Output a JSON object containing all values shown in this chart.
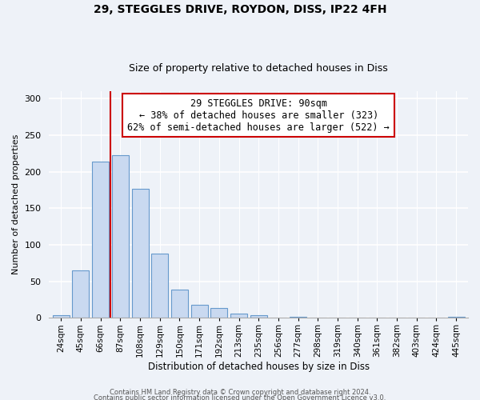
{
  "title1": "29, STEGGLES DRIVE, ROYDON, DISS, IP22 4FH",
  "title2": "Size of property relative to detached houses in Diss",
  "xlabel": "Distribution of detached houses by size in Diss",
  "ylabel": "Number of detached properties",
  "bar_labels": [
    "24sqm",
    "45sqm",
    "66sqm",
    "87sqm",
    "108sqm",
    "129sqm",
    "150sqm",
    "171sqm",
    "192sqm",
    "213sqm",
    "235sqm",
    "256sqm",
    "277sqm",
    "298sqm",
    "319sqm",
    "340sqm",
    "361sqm",
    "382sqm",
    "403sqm",
    "424sqm",
    "445sqm"
  ],
  "bar_heights": [
    4,
    65,
    214,
    222,
    177,
    88,
    39,
    18,
    14,
    6,
    4,
    0,
    1,
    0,
    0,
    0,
    0,
    0,
    0,
    0,
    1
  ],
  "bar_color": "#c9d9f0",
  "bar_edge_color": "#6699cc",
  "vline_color": "#cc0000",
  "annotation_title": "29 STEGGLES DRIVE: 90sqm",
  "annotation_line1": "← 38% of detached houses are smaller (323)",
  "annotation_line2": "62% of semi-detached houses are larger (522) →",
  "annotation_box_color": "#ffffff",
  "annotation_box_edge": "#cc0000",
  "ylim": [
    0,
    310
  ],
  "yticks": [
    0,
    50,
    100,
    150,
    200,
    250,
    300
  ],
  "footer1": "Contains HM Land Registry data © Crown copyright and database right 2024.",
  "footer2": "Contains public sector information licensed under the Open Government Licence v3.0.",
  "background_color": "#eef2f8",
  "title_fontsize": 10,
  "subtitle_fontsize": 9,
  "xlabel_fontsize": 8.5,
  "ylabel_fontsize": 8,
  "tick_fontsize": 7.5,
  "footer_fontsize": 6
}
